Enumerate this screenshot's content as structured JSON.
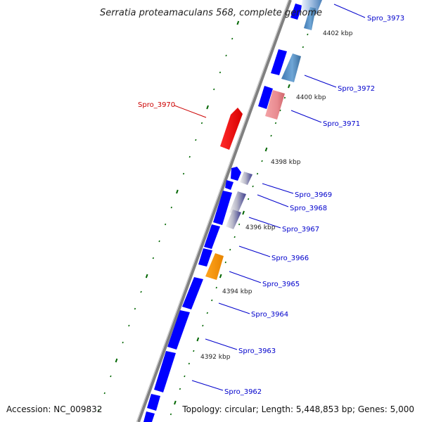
{
  "title": "Serratia proteamaculans 568, complete genome",
  "footer": {
    "accession": "Accession: NC_009832",
    "summary": "Topology: circular; Length: 5,448,853 bp; Genes: 5,000"
  },
  "colors": {
    "backbone": "#808080",
    "forward_gene": "#0000ff",
    "label_blue": "#0000cc",
    "label_red": "#cc0000",
    "tick_green": "#006600"
  },
  "kbp_markers": [
    {
      "label": "4402 kbp",
      "pos": 4402
    },
    {
      "label": "4400 kbp",
      "pos": 4400
    },
    {
      "label": "4398 kbp",
      "pos": 4398
    },
    {
      "label": "4396 kbp",
      "pos": 4396
    },
    {
      "label": "4394 kbp",
      "pos": 4394
    },
    {
      "label": "4392 kbp",
      "pos": 4392
    }
  ],
  "genes": [
    {
      "name": "Spro_3973",
      "strand": "reverse",
      "color": "blue-white",
      "highlight": false
    },
    {
      "name": "Spro_3972",
      "strand": "reverse",
      "color": "steelblue",
      "highlight": false
    },
    {
      "name": "Spro_3971",
      "strand": "reverse",
      "color": "pink",
      "highlight": false
    },
    {
      "name": "Spro_3970",
      "strand": "forward",
      "color": "red",
      "highlight": true
    },
    {
      "name": "Spro_3969",
      "strand": "reverse",
      "color": "grey-purple",
      "highlight": false
    },
    {
      "name": "Spro_3968",
      "strand": "reverse",
      "color": "grey-purple",
      "highlight": false
    },
    {
      "name": "Spro_3967",
      "strand": "reverse",
      "color": "grey-purple",
      "highlight": false
    },
    {
      "name": "Spro_3966",
      "strand": "forward",
      "color": "blue",
      "highlight": false
    },
    {
      "name": "Spro_3965",
      "strand": "reverse",
      "color": "orange",
      "highlight": false
    },
    {
      "name": "Spro_3964",
      "strand": "forward",
      "color": "blue",
      "highlight": false
    },
    {
      "name": "Spro_3963",
      "strand": "forward",
      "color": "blue",
      "highlight": false
    },
    {
      "name": "Spro_3962",
      "strand": "forward",
      "color": "blue",
      "highlight": false
    }
  ]
}
